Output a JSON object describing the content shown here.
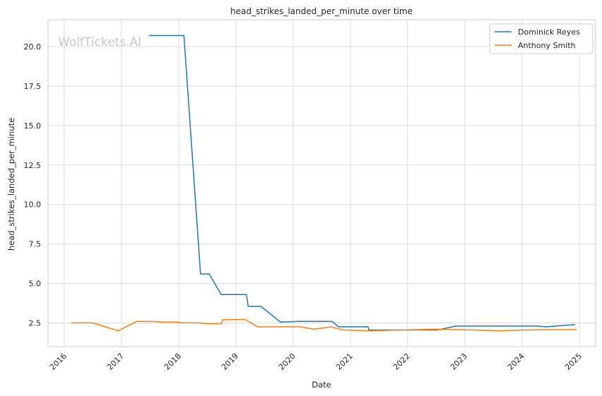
{
  "chart_data": {
    "type": "line",
    "title": "head_strikes_landed_per_minute over time",
    "xlabel": "Date",
    "ylabel": "head_strikes_landed_per_minute",
    "watermark": "WolfTickets.AI",
    "xlim": [
      "2015-09-20",
      "2025-04-15"
    ],
    "ylim": [
      1.0,
      21.7
    ],
    "x_ticks": [
      "2016",
      "2017",
      "2018",
      "2019",
      "2020",
      "2021",
      "2022",
      "2023",
      "2024",
      "2025"
    ],
    "y_ticks": [
      2.5,
      5.0,
      7.5,
      10.0,
      12.5,
      15.0,
      17.5,
      20.0
    ],
    "y_tick_labels": [
      "2.5",
      "5.0",
      "7.5",
      "10.0",
      "12.5",
      "15.0",
      "17.5",
      "20.0"
    ],
    "grid": true,
    "legend_position": "top-right",
    "series": [
      {
        "name": "Dominick Reyes",
        "color": "#1f77b4",
        "points": [
          [
            "2017-06-25",
            20.7
          ],
          [
            "2018-02-03",
            20.7
          ],
          [
            "2018-05-20",
            5.6
          ],
          [
            "2018-07-15",
            5.6
          ],
          [
            "2018-09-29",
            4.3
          ],
          [
            "2019-03-09",
            4.3
          ],
          [
            "2019-03-20",
            3.55
          ],
          [
            "2019-06-10",
            3.55
          ],
          [
            "2019-10-12",
            2.55
          ],
          [
            "2020-02-08",
            2.6
          ],
          [
            "2020-09-05",
            2.6
          ],
          [
            "2020-10-17",
            2.25
          ],
          [
            "2021-04-24",
            2.25
          ],
          [
            "2021-04-28",
            2.05
          ],
          [
            "2022-07-10",
            2.05
          ],
          [
            "2022-11-05",
            2.3
          ],
          [
            "2024-04-10",
            2.3
          ],
          [
            "2024-06-01",
            2.25
          ],
          [
            "2024-12-05",
            2.4
          ]
        ]
      },
      {
        "name": "Anthony Smith",
        "color": "#ff7f0e",
        "points": [
          [
            "2016-02-15",
            2.5
          ],
          [
            "2016-07-01",
            2.5
          ],
          [
            "2016-12-10",
            2.0
          ],
          [
            "2017-04-10",
            2.6
          ],
          [
            "2017-07-15",
            2.6
          ],
          [
            "2017-09-20",
            2.55
          ],
          [
            "2017-12-15",
            2.55
          ],
          [
            "2018-02-01",
            2.5
          ],
          [
            "2018-05-10",
            2.5
          ],
          [
            "2018-07-01",
            2.45
          ],
          [
            "2018-10-01",
            2.45
          ],
          [
            "2018-10-10",
            2.7
          ],
          [
            "2019-03-01",
            2.72
          ],
          [
            "2019-05-18",
            2.25
          ],
          [
            "2020-02-15",
            2.25
          ],
          [
            "2020-05-15",
            2.1
          ],
          [
            "2020-08-25",
            2.25
          ],
          [
            "2020-11-20",
            2.05
          ],
          [
            "2021-05-01",
            2.0
          ],
          [
            "2022-07-01",
            2.1
          ],
          [
            "2023-03-01",
            2.05
          ],
          [
            "2023-08-20",
            2.0
          ],
          [
            "2024-01-01",
            2.05
          ],
          [
            "2024-12-15",
            2.08
          ]
        ]
      }
    ]
  }
}
